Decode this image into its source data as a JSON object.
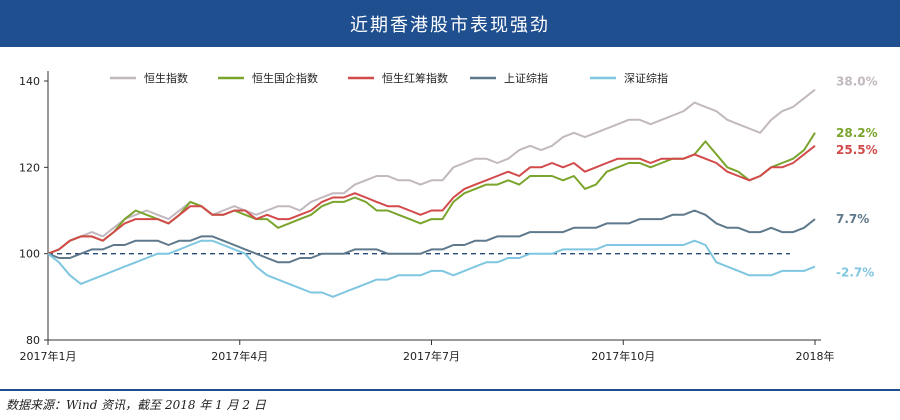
{
  "header": {
    "title": "近期香港股市表现强劲"
  },
  "footer": {
    "source": "数据来源：Wind 资讯，截至 2018 年 1 月 2 日"
  },
  "chart_data": {
    "type": "line",
    "title": "近期香港股市表现强劲",
    "xlabel": "",
    "ylabel": "",
    "ylim": [
      80,
      140
    ],
    "yticks": [
      80,
      100,
      120,
      140
    ],
    "x_tick_labels": [
      "2017年1月",
      "2017年4月",
      "2017年7月",
      "2017年10月",
      "2018年"
    ],
    "grid": false,
    "legend_position": "top",
    "reference_line": {
      "y": 100,
      "style": "dashed",
      "color": "#2a4a7a"
    },
    "series": [
      {
        "name": "恒生指数",
        "color": "#c2b8bf",
        "end_label": "38.0%",
        "values": [
          100,
          101,
          103,
          104,
          105,
          104,
          106,
          108,
          109,
          110,
          109,
          108,
          110,
          112,
          111,
          109,
          110,
          111,
          110,
          109,
          110,
          111,
          111,
          110,
          112,
          113,
          114,
          114,
          116,
          117,
          118,
          118,
          117,
          117,
          116,
          117,
          117,
          120,
          121,
          122,
          122,
          121,
          122,
          124,
          125,
          124,
          125,
          127,
          128,
          127,
          128,
          129,
          130,
          131,
          131,
          130,
          131,
          132,
          133,
          135,
          134,
          133,
          131,
          130,
          129,
          128,
          131,
          133,
          134,
          136,
          138
        ]
      },
      {
        "name": "恒生国企指数",
        "color": "#7aa42c",
        "end_label": "28.2%",
        "values": [
          100,
          101,
          103,
          104,
          104,
          103,
          105,
          108,
          110,
          109,
          108,
          107,
          109,
          112,
          111,
          109,
          109,
          110,
          109,
          108,
          108,
          106,
          107,
          108,
          109,
          111,
          112,
          112,
          113,
          112,
          110,
          110,
          109,
          108,
          107,
          108,
          108,
          112,
          114,
          115,
          116,
          116,
          117,
          116,
          118,
          118,
          118,
          117,
          118,
          115,
          116,
          119,
          120,
          121,
          121,
          120,
          121,
          122,
          122,
          123,
          126,
          123,
          120,
          119,
          117,
          118,
          120,
          121,
          122,
          124,
          128
        ]
      },
      {
        "name": "恒生红筹指数",
        "color": "#d24a4a",
        "end_label": "25.5%",
        "values": [
          100,
          101,
          103,
          104,
          104,
          103,
          105,
          107,
          108,
          108,
          108,
          107,
          109,
          111,
          111,
          109,
          109,
          110,
          110,
          108,
          109,
          108,
          108,
          109,
          110,
          112,
          113,
          113,
          114,
          113,
          112,
          111,
          111,
          110,
          109,
          110,
          110,
          113,
          115,
          116,
          117,
          118,
          119,
          118,
          120,
          120,
          121,
          120,
          121,
          119,
          120,
          121,
          122,
          122,
          122,
          121,
          122,
          122,
          122,
          123,
          122,
          121,
          119,
          118,
          117,
          118,
          120,
          120,
          121,
          123,
          125
        ]
      },
      {
        "name": "上证综指",
        "color": "#5e788c",
        "end_label": "7.7%",
        "values": [
          100,
          99,
          99,
          100,
          101,
          101,
          102,
          102,
          103,
          103,
          103,
          102,
          103,
          103,
          104,
          104,
          103,
          102,
          101,
          100,
          99,
          98,
          98,
          99,
          99,
          100,
          100,
          100,
          101,
          101,
          101,
          100,
          100,
          100,
          100,
          101,
          101,
          102,
          102,
          103,
          103,
          104,
          104,
          104,
          105,
          105,
          105,
          105,
          106,
          106,
          106,
          107,
          107,
          107,
          108,
          108,
          108,
          109,
          109,
          110,
          109,
          107,
          106,
          106,
          105,
          105,
          106,
          105,
          105,
          106,
          108
        ]
      },
      {
        "name": "深证综指",
        "color": "#7fc6e0",
        "end_label": "-2.7%",
        "values": [
          100,
          98,
          95,
          93,
          94,
          95,
          96,
          97,
          98,
          99,
          100,
          100,
          101,
          102,
          103,
          103,
          102,
          101,
          100,
          97,
          95,
          94,
          93,
          92,
          91,
          91,
          90,
          91,
          92,
          93,
          94,
          94,
          95,
          95,
          95,
          96,
          96,
          95,
          96,
          97,
          98,
          98,
          99,
          99,
          100,
          100,
          100,
          101,
          101,
          101,
          101,
          102,
          102,
          102,
          102,
          102,
          102,
          102,
          102,
          103,
          102,
          98,
          97,
          96,
          95,
          95,
          95,
          96,
          96,
          96,
          97
        ]
      }
    ]
  }
}
